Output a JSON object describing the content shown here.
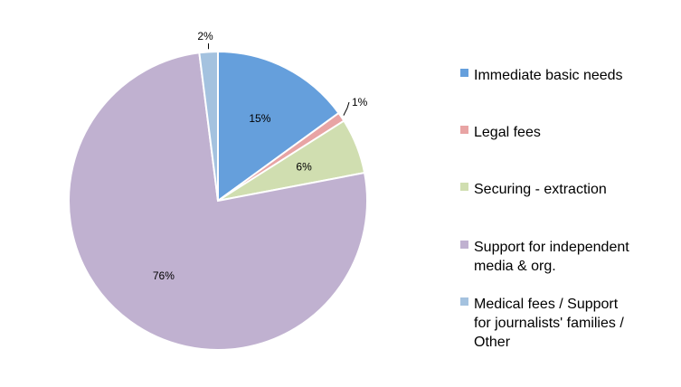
{
  "chart_data": {
    "type": "pie",
    "title": "",
    "series": [
      {
        "values": [
          15,
          1,
          6,
          76,
          2
        ],
        "labels": [
          "15%",
          "1%",
          "6%",
          "76%",
          "2%"
        ]
      }
    ],
    "categories": [
      "Immediate basic needs",
      "Legal fees",
      "Securing - extraction",
      "Support for independent media & org.",
      "Medical fees / Support for journalists' families / Other"
    ],
    "legend_lines": [
      [
        "Immediate basic needs"
      ],
      [
        "Legal fees"
      ],
      [
        "Securing - extraction"
      ],
      [
        "Support for independent",
        "media & org."
      ],
      [
        "Medical fees / Support",
        "for journalists' families /",
        "Other"
      ]
    ],
    "colors": [
      "#659fdc",
      "#e8a4a4",
      "#d0deb0",
      "#c0b1d0",
      "#a4c2df"
    ],
    "legend": "right",
    "start_angle_deg": 0,
    "direction": "clockwise"
  }
}
